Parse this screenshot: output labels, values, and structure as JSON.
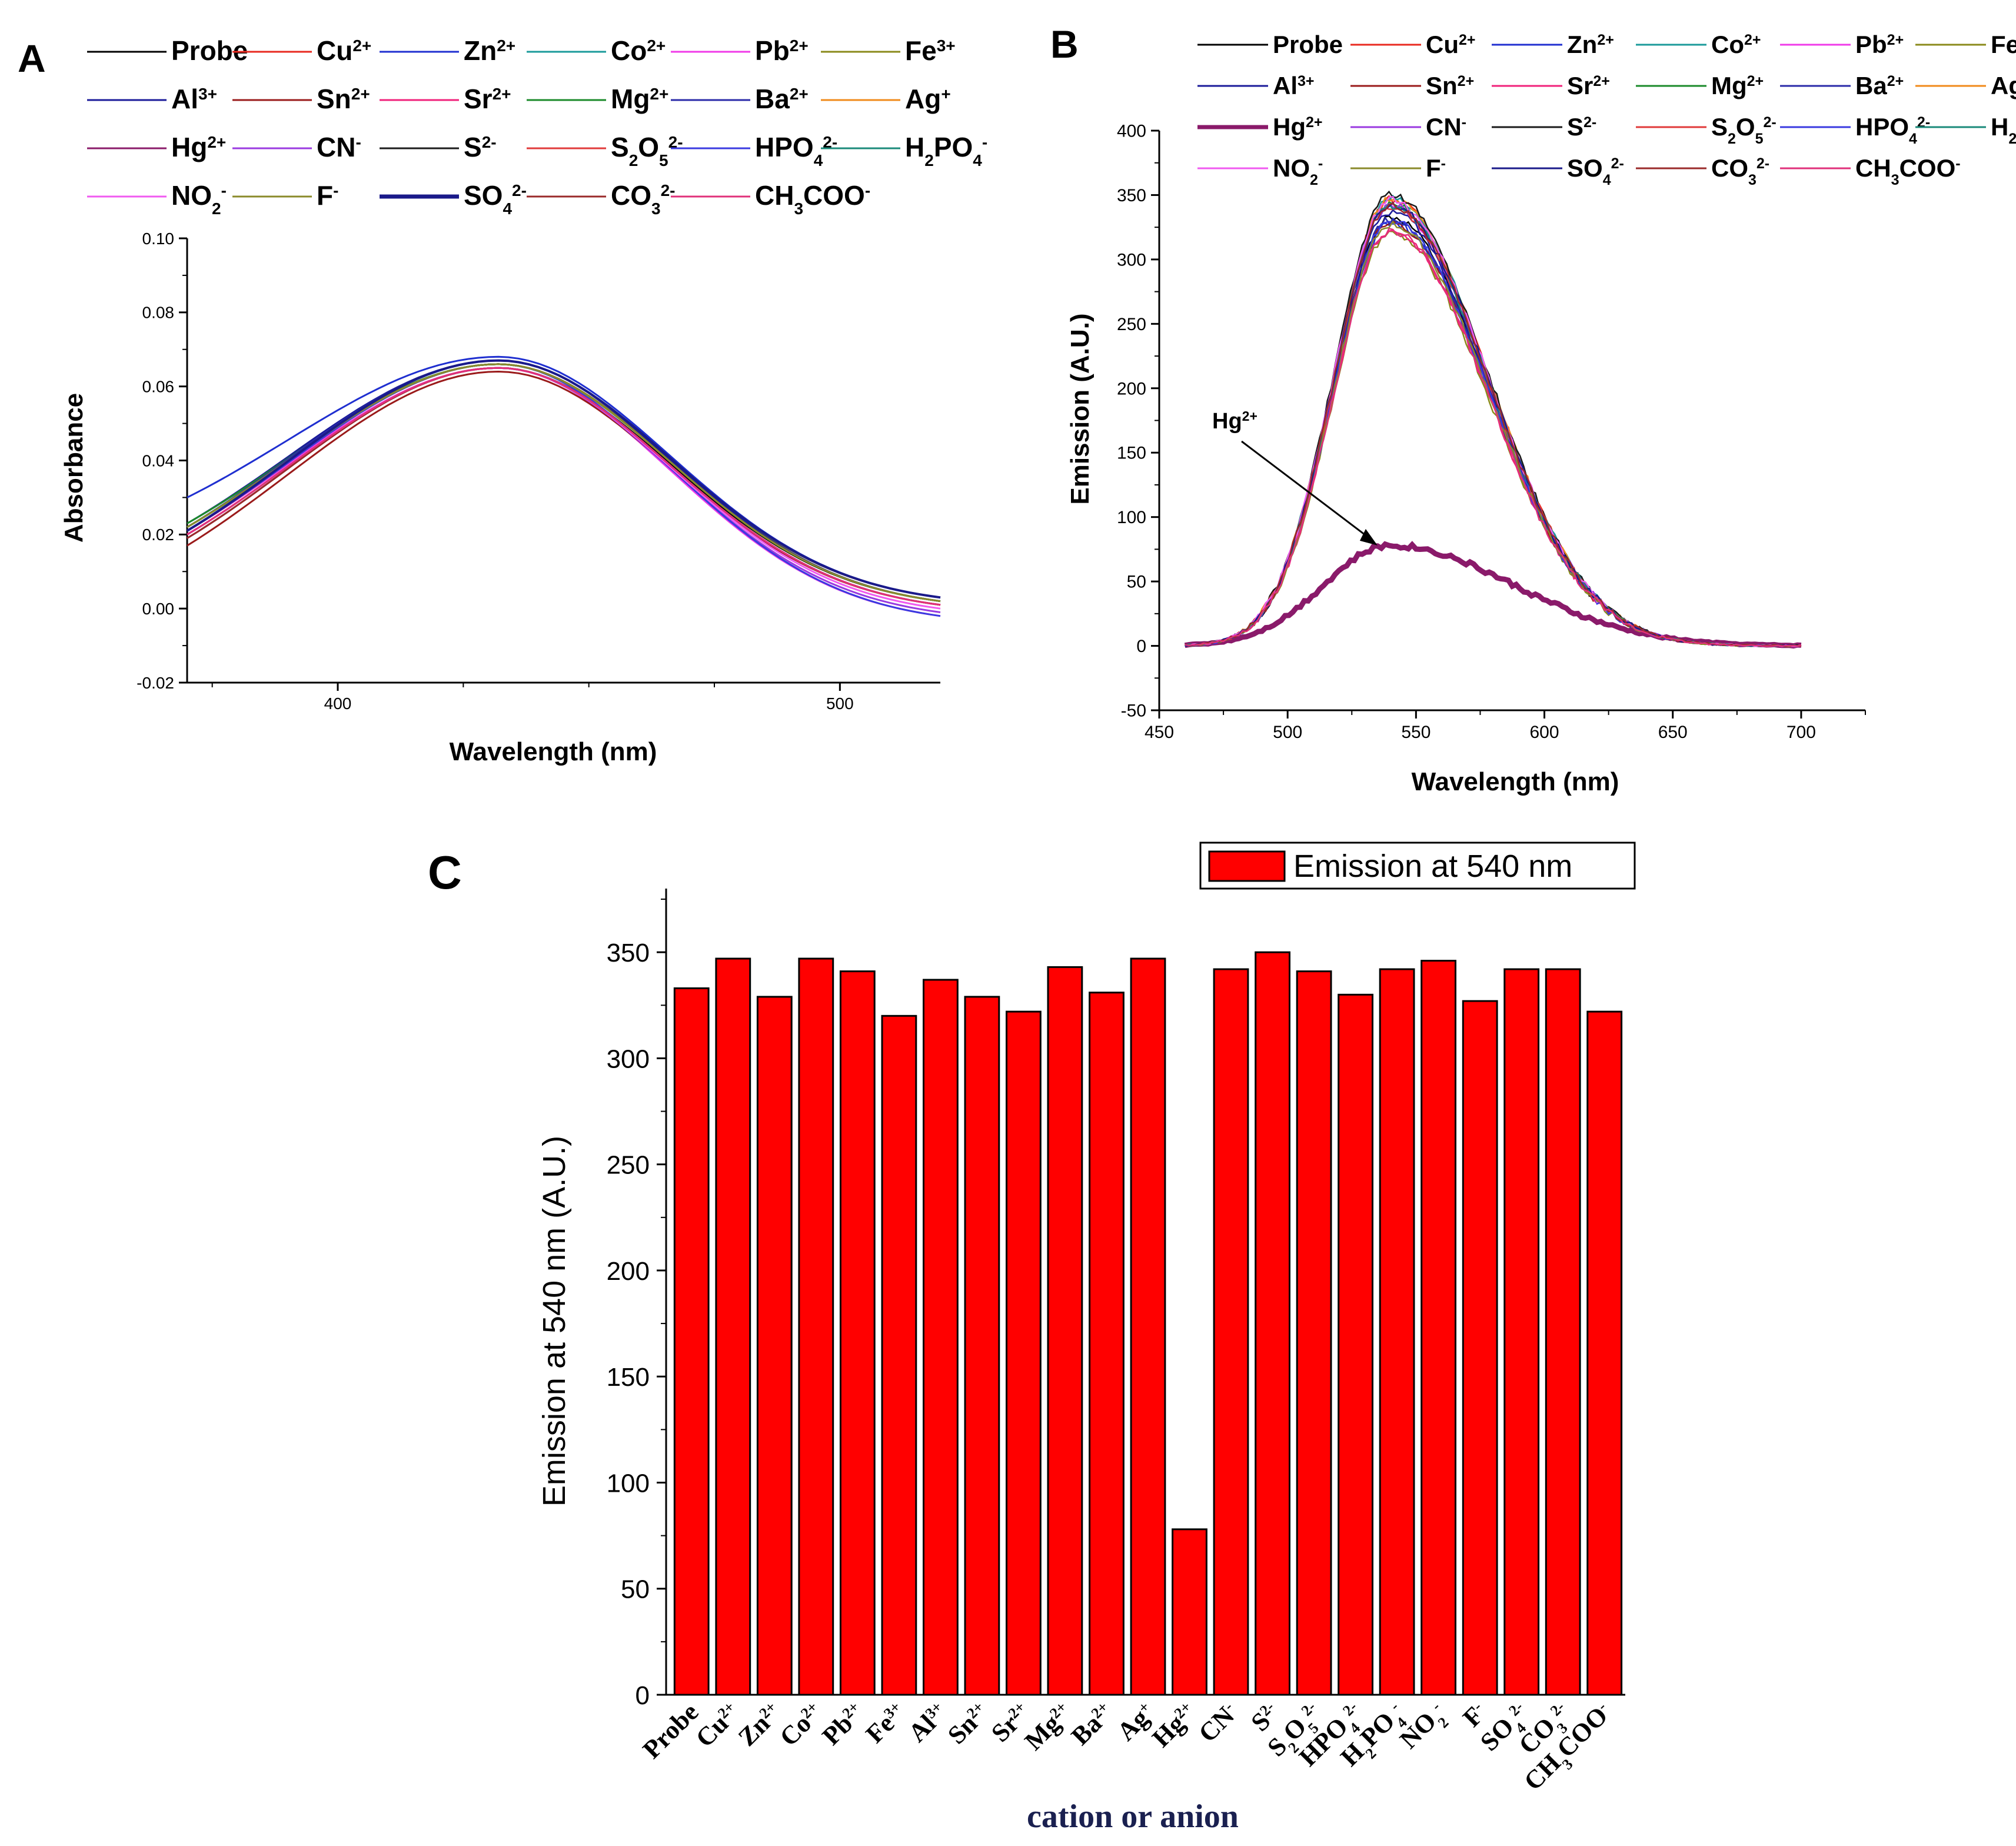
{
  "ions": [
    {
      "name": "Probe",
      "main": "Probe",
      "sup": "",
      "sub": "",
      "color": "#000000"
    },
    {
      "name": "Cu2+",
      "main": "Cu",
      "sup": "2+",
      "sub": "",
      "color": "#e8291f"
    },
    {
      "name": "Zn2+",
      "main": "Zn",
      "sup": "2+",
      "sub": "",
      "color": "#1f2fd0"
    },
    {
      "name": "Co2+",
      "main": "Co",
      "sup": "2+",
      "sub": "",
      "color": "#1a9a9a"
    },
    {
      "name": "Pb2+",
      "main": "Pb",
      "sup": "2+",
      "sub": "",
      "color": "#f03ae8"
    },
    {
      "name": "Fe3+",
      "main": "Fe",
      "sup": "3+",
      "sub": "",
      "color": "#8a8a1a"
    },
    {
      "name": "Al3+",
      "main": "Al",
      "sup": "3+",
      "sub": "",
      "color": "#1a1a9a"
    },
    {
      "name": "Sn2+",
      "main": "Sn",
      "sup": "2+",
      "sub": "",
      "color": "#9a1a1a"
    },
    {
      "name": "Sr2+",
      "main": "Sr",
      "sup": "2+",
      "sub": "",
      "color": "#f0227a"
    },
    {
      "name": "Mg2+",
      "main": "Mg",
      "sup": "2+",
      "sub": "",
      "color": "#1a8a2a"
    },
    {
      "name": "Ba2+",
      "main": "Ba",
      "sup": "2+",
      "sub": "",
      "color": "#2a2aa8"
    },
    {
      "name": "Ag+",
      "main": "Ag",
      "sup": "+",
      "sub": "",
      "color": "#f08a1a"
    },
    {
      "name": "Hg2+",
      "main": "Hg",
      "sup": "2+",
      "sub": "",
      "color": "#8a1a6a"
    },
    {
      "name": "CN-",
      "main": "CN",
      "sup": "-",
      "sub": "",
      "color": "#9a3ae0"
    },
    {
      "name": "S2-",
      "main": "S",
      "sup": "2-",
      "sub": "",
      "color": "#1a1a1a"
    },
    {
      "name": "S2O52-",
      "main": "S",
      "sup": "2-",
      "sub": "2",
      "color": "#e03a3a"
    },
    {
      "name": "HPO42-",
      "main": "HPO",
      "sup": "2-",
      "sub": "4",
      "color": "#3a3ae0"
    },
    {
      "name": "H2PO4-",
      "main": "H",
      "sup": "-",
      "sub": "2",
      "color": "#1a8a7a"
    },
    {
      "name": "NO2-",
      "main": "NO",
      "sup": "-",
      "sub": "2",
      "color": "#f05af0"
    },
    {
      "name": "F-",
      "main": "F",
      "sup": "-",
      "sub": "",
      "color": "#8a8a2a"
    },
    {
      "name": "SO42-",
      "main": "SO",
      "sup": "2-",
      "sub": "4",
      "color": "#1a1a8a"
    },
    {
      "name": "CO32-",
      "main": "CO",
      "sup": "2-",
      "sub": "3",
      "color": "#9a2a2a"
    },
    {
      "name": "CH3COO-",
      "main": "CH",
      "sup": "-",
      "sub": "3",
      "color": "#e0307a"
    }
  ],
  "legend_text": {
    "S2O52-": [
      "S",
      "2",
      "O",
      "5",
      "2-"
    ],
    "HPO42-": [
      "HPO",
      "4",
      "2-"
    ],
    "H2PO4-": [
      "H",
      "2",
      "PO",
      "4",
      "-"
    ],
    "NO2-": [
      "NO",
      "2",
      "-"
    ],
    "SO42-": [
      "SO",
      "4",
      "2-"
    ],
    "CO32-": [
      "CO",
      "3",
      "2-"
    ],
    "CH3COO-": [
      "CH",
      "3",
      "COO",
      "-"
    ]
  },
  "chart_data": [
    {
      "panel": "A",
      "type": "line",
      "title": "",
      "xlabel": "Wavelength (nm)",
      "ylabel": "Absorbance",
      "xlim": [
        370,
        520
      ],
      "ylim": [
        -0.02,
        0.1
      ],
      "xticks": [
        400,
        500
      ],
      "yticks": [
        -0.02,
        0.0,
        0.02,
        0.04,
        0.06,
        0.08,
        0.1
      ],
      "peak_nm": 432,
      "series_description": "23 overlapping absorbance curves peaking near 432 nm",
      "series": [
        {
          "name": "Probe",
          "y_at_370": 0.02,
          "peak": 0.065,
          "y_at_520": 0.002
        },
        {
          "name": "Cu2+",
          "y_at_370": 0.021,
          "peak": 0.066,
          "y_at_520": 0.003
        },
        {
          "name": "Zn2+",
          "y_at_370": 0.03,
          "peak": 0.068,
          "y_at_520": 0.003
        },
        {
          "name": "Co2+",
          "y_at_370": 0.022,
          "peak": 0.066,
          "y_at_520": 0.002
        },
        {
          "name": "Pb2+",
          "y_at_370": 0.021,
          "peak": 0.065,
          "y_at_520": -0.002
        },
        {
          "name": "Fe3+",
          "y_at_370": 0.022,
          "peak": 0.066,
          "y_at_520": 0.003
        },
        {
          "name": "Al3+",
          "y_at_370": 0.023,
          "peak": 0.067,
          "y_at_520": 0.002
        },
        {
          "name": "Sn2+",
          "y_at_370": 0.017,
          "peak": 0.064,
          "y_at_520": 0.001
        },
        {
          "name": "Sr2+",
          "y_at_370": 0.02,
          "peak": 0.065,
          "y_at_520": 0.001
        },
        {
          "name": "Mg2+",
          "y_at_370": 0.023,
          "peak": 0.066,
          "y_at_520": 0.002
        },
        {
          "name": "Ba2+",
          "y_at_370": 0.022,
          "peak": 0.067,
          "y_at_520": 0.003
        },
        {
          "name": "Ag+",
          "y_at_370": 0.021,
          "peak": 0.066,
          "y_at_520": 0.002
        },
        {
          "name": "Hg2+",
          "y_at_370": 0.019,
          "peak": 0.065,
          "y_at_520": 0.001
        },
        {
          "name": "CN-",
          "y_at_370": 0.02,
          "peak": 0.065,
          "y_at_520": -0.001
        },
        {
          "name": "S2-",
          "y_at_370": 0.021,
          "peak": 0.066,
          "y_at_520": 0.002
        },
        {
          "name": "S2O52-",
          "y_at_370": 0.02,
          "peak": 0.065,
          "y_at_520": 0.001
        },
        {
          "name": "HPO42-",
          "y_at_370": 0.021,
          "peak": 0.066,
          "y_at_520": -0.002
        },
        {
          "name": "H2PO4-",
          "y_at_370": 0.022,
          "peak": 0.066,
          "y_at_520": 0.002
        },
        {
          "name": "NO2-",
          "y_at_370": 0.02,
          "peak": 0.065,
          "y_at_520": 0.0
        },
        {
          "name": "F-",
          "y_at_370": 0.022,
          "peak": 0.066,
          "y_at_520": 0.002
        },
        {
          "name": "SO42-",
          "y_at_370": 0.021,
          "peak": 0.067,
          "y_at_520": 0.003
        },
        {
          "name": "CO32-",
          "y_at_370": 0.019,
          "peak": 0.065,
          "y_at_520": 0.001
        },
        {
          "name": "CH3COO-",
          "y_at_370": 0.02,
          "peak": 0.065,
          "y_at_520": 0.001
        }
      ]
    },
    {
      "panel": "B",
      "type": "line",
      "title": "",
      "xlabel": "Wavelength (nm)",
      "ylabel": "Emission (A.U.)",
      "xlim": [
        450,
        725
      ],
      "ylim": [
        -50,
        400
      ],
      "xticks": [
        450,
        500,
        550,
        600,
        650,
        700
      ],
      "yticks": [
        -50,
        0,
        50,
        100,
        150,
        200,
        250,
        300,
        350,
        400
      ],
      "x_range": [
        460,
        700
      ],
      "peak_nm": 540,
      "annotation": {
        "text": "Hg",
        "sup": "2+",
        "points_to": {
          "x": 535,
          "y": 78
        }
      },
      "series": [
        {
          "name": "Probe",
          "peak": 333
        },
        {
          "name": "Cu2+",
          "peak": 347
        },
        {
          "name": "Zn2+",
          "peak": 329
        },
        {
          "name": "Co2+",
          "peak": 347
        },
        {
          "name": "Pb2+",
          "peak": 341
        },
        {
          "name": "Fe3+",
          "peak": 320
        },
        {
          "name": "Al3+",
          "peak": 337
        },
        {
          "name": "Sn2+",
          "peak": 329
        },
        {
          "name": "Sr2+",
          "peak": 322
        },
        {
          "name": "Mg2+",
          "peak": 343
        },
        {
          "name": "Ba2+",
          "peak": 331
        },
        {
          "name": "Ag+",
          "peak": 347
        },
        {
          "name": "Hg2+",
          "peak": 78
        },
        {
          "name": "CN-",
          "peak": 342
        },
        {
          "name": "S2-",
          "peak": 350
        },
        {
          "name": "S2O52-",
          "peak": 341
        },
        {
          "name": "HPO42-",
          "peak": 330
        },
        {
          "name": "H2PO4-",
          "peak": 342
        },
        {
          "name": "NO2-",
          "peak": 346
        },
        {
          "name": "F-",
          "peak": 327
        },
        {
          "name": "SO42-",
          "peak": 342
        },
        {
          "name": "CO32-",
          "peak": 342
        },
        {
          "name": "CH3COO-",
          "peak": 322
        }
      ]
    },
    {
      "panel": "C",
      "type": "bar",
      "title": "",
      "xlabel": "cation or anion",
      "ylabel": "Emission at 540 nm (A.U.)",
      "ylim": [
        0,
        380
      ],
      "yticks": [
        0,
        50,
        100,
        150,
        200,
        250,
        300,
        350
      ],
      "legend": "Emission at 540 nm",
      "legend_position": "top-right",
      "bar_color": "#ff0000",
      "categories": [
        "Probe",
        "Cu2+",
        "Zn2+",
        "Co2+",
        "Pb2+",
        "Fe3+",
        "Al3+",
        "Sn2+",
        "Sr2+",
        "Mg2+",
        "Ba2+",
        "Ag+",
        "Hg2+",
        "CN-",
        "S2-",
        "S2O52-",
        "HPO42-",
        "H2PO4-",
        "NO2-",
        "F-",
        "SO42-",
        "CO32-",
        "CH3COO-"
      ],
      "values": [
        333,
        347,
        329,
        347,
        341,
        320,
        337,
        329,
        322,
        343,
        331,
        347,
        78,
        342,
        350,
        341,
        330,
        342,
        346,
        327,
        342,
        342,
        322
      ]
    }
  ],
  "panel_labels": {
    "a": "A",
    "b": "B",
    "c": "C"
  }
}
